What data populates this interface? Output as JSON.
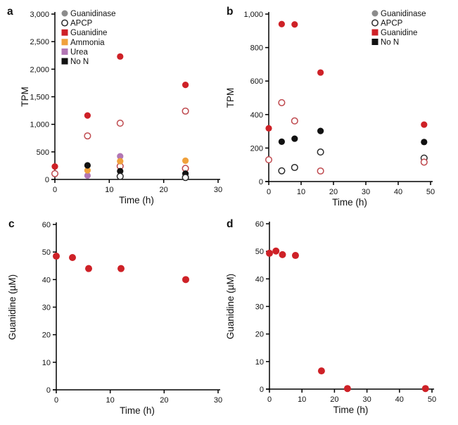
{
  "figure_background": "#ffffff",
  "palette": {
    "red": "#ce2127",
    "red_open_stroke": "#bf4a4f",
    "orange": "#f0a13c",
    "purple": "#b276b4",
    "gray": "#8c8c8c",
    "black": "#111111",
    "open_black_stroke": "#2b2b2b",
    "axis": "#000000"
  },
  "chart_data": [
    {
      "label": "a",
      "type": "scatter",
      "xlabel": "Time (h)",
      "ylabel": "TPM",
      "xlim": [
        0,
        30
      ],
      "ylim": [
        0,
        3000
      ],
      "grid": false,
      "xticks": {
        "values": [
          0,
          10,
          20,
          30
        ],
        "labels": [
          "0",
          "10",
          "20",
          "30"
        ]
      },
      "yticks": {
        "values": [
          0,
          500,
          1000,
          1500,
          2000,
          2500,
          3000
        ],
        "labels": [
          "0",
          "500",
          "1,000",
          "1,500",
          "2,000",
          "2,500",
          "3,000"
        ]
      },
      "legend_position": "top-left",
      "legend": [
        {
          "label": "Guanidinase",
          "marker": "circle",
          "color": "#8c8c8c"
        },
        {
          "label": "APCP",
          "marker": "circle-open",
          "color": "#2b2b2b"
        },
        {
          "label": "Guanidine",
          "marker": "square",
          "color": "#ce2127"
        },
        {
          "label": "Ammonia",
          "marker": "square",
          "color": "#f0a13c"
        },
        {
          "label": "Urea",
          "marker": "square",
          "color": "#b276b4"
        },
        {
          "label": "No N",
          "marker": "square",
          "color": "#111111"
        }
      ],
      "series": [
        {
          "name": "red-filled",
          "marker": "filled",
          "color": "#ce2127",
          "points": [
            [
              0,
              235
            ],
            [
              6,
              1160
            ],
            [
              12,
              2230
            ],
            [
              24,
              1715
            ]
          ]
        },
        {
          "name": "red-open",
          "marker": "open",
          "color": "#bf4a4f",
          "points": [
            [
              0,
              105
            ],
            [
              6,
              790
            ],
            [
              12,
              1020
            ],
            [
              12,
              240
            ],
            [
              24,
              1240
            ],
            [
              24,
              200
            ]
          ]
        },
        {
          "name": "purple-filled",
          "marker": "filled",
          "color": "#b276b4",
          "points": [
            [
              6,
              70
            ],
            [
              12,
              420
            ]
          ]
        },
        {
          "name": "orange-filled",
          "marker": "filled",
          "color": "#f0a13c",
          "points": [
            [
              6,
              165
            ],
            [
              12,
              330
            ],
            [
              24,
              340
            ]
          ]
        },
        {
          "name": "black-filled",
          "marker": "filled",
          "color": "#111111",
          "points": [
            [
              6,
              255
            ],
            [
              12,
              150
            ],
            [
              24,
              105
            ]
          ]
        },
        {
          "name": "black-open",
          "marker": "open",
          "color": "#2b2b2b",
          "points": [
            [
              12,
              55
            ],
            [
              24,
              35
            ]
          ]
        }
      ]
    },
    {
      "label": "b",
      "type": "scatter",
      "xlabel": "Time (h)",
      "ylabel": "TPM",
      "xlim": [
        0,
        50
      ],
      "ylim": [
        0,
        1000
      ],
      "grid": false,
      "xticks": {
        "values": [
          0,
          10,
          20,
          30,
          40,
          50
        ],
        "labels": [
          "0",
          "10",
          "20",
          "30",
          "40",
          "50"
        ]
      },
      "yticks": {
        "values": [
          0,
          200,
          400,
          600,
          800,
          1000
        ],
        "labels": [
          "0",
          "200",
          "400",
          "600",
          "800",
          "1,000"
        ]
      },
      "legend_position": "top-right",
      "legend": [
        {
          "label": "Guanidinase",
          "marker": "circle",
          "color": "#8c8c8c"
        },
        {
          "label": "APCP",
          "marker": "circle-open",
          "color": "#2b2b2b"
        },
        {
          "label": "Guanidine",
          "marker": "square",
          "color": "#ce2127"
        },
        {
          "label": "No N",
          "marker": "square",
          "color": "#111111"
        }
      ],
      "series": [
        {
          "name": "red-filled",
          "marker": "filled",
          "color": "#ce2127",
          "points": [
            [
              0,
              318
            ],
            [
              4,
              940
            ],
            [
              8,
              938
            ],
            [
              16,
              651
            ],
            [
              48,
              340
            ]
          ]
        },
        {
          "name": "black-filled",
          "marker": "filled",
          "color": "#111111",
          "points": [
            [
              4,
              238
            ],
            [
              8,
              256
            ],
            [
              16,
              302
            ],
            [
              48,
              236
            ]
          ]
        },
        {
          "name": "black-open",
          "marker": "open",
          "color": "#2b2b2b",
          "points": [
            [
              4,
              64
            ],
            [
              8,
              84
            ],
            [
              16,
              176
            ],
            [
              48,
              140
            ]
          ]
        },
        {
          "name": "red-open",
          "marker": "open",
          "color": "#bf4a4f",
          "points": [
            [
              0,
              130
            ],
            [
              4,
              471
            ],
            [
              8,
              362
            ],
            [
              16,
              63
            ],
            [
              48,
              116
            ]
          ]
        }
      ]
    },
    {
      "label": "c",
      "type": "scatter",
      "xlabel": "Time (h)",
      "ylabel": "Guanidine (µM)",
      "xlim": [
        0,
        30
      ],
      "ylim": [
        0,
        60
      ],
      "grid": false,
      "xticks": {
        "values": [
          0,
          10,
          20,
          30
        ],
        "labels": [
          "0",
          "10",
          "20",
          "30"
        ]
      },
      "yticks": {
        "values": [
          0,
          10,
          20,
          30,
          40,
          50,
          60
        ],
        "labels": [
          "0",
          "10",
          "20",
          "30",
          "40",
          "50",
          "60"
        ]
      },
      "legend": [],
      "series": [
        {
          "name": "red-filled",
          "marker": "filled",
          "color": "#ce2127",
          "points": [
            [
              0,
              48.5
            ],
            [
              3,
              48.0
            ],
            [
              6,
              44.0
            ],
            [
              12,
              44.0
            ],
            [
              24,
              40.0
            ]
          ]
        }
      ]
    },
    {
      "label": "d",
      "type": "scatter",
      "xlabel": "Time (h)",
      "ylabel": "Guanidine (µM)",
      "xlim": [
        0,
        50
      ],
      "ylim": [
        0,
        60
      ],
      "grid": false,
      "xticks": {
        "values": [
          0,
          10,
          20,
          30,
          40,
          50
        ],
        "labels": [
          "0",
          "10",
          "20",
          "30",
          "40",
          "50"
        ]
      },
      "yticks": {
        "values": [
          0,
          10,
          20,
          30,
          40,
          50,
          60
        ],
        "labels": [
          "0",
          "10",
          "20",
          "30",
          "40",
          "50",
          "60"
        ]
      },
      "legend": [],
      "series": [
        {
          "name": "red-filled",
          "marker": "filled",
          "color": "#ce2127",
          "points": [
            [
              0,
              49.3
            ],
            [
              2,
              50.1
            ],
            [
              4,
              48.8
            ],
            [
              8,
              48.5
            ],
            [
              16,
              6.6
            ],
            [
              24,
              0.2
            ],
            [
              48,
              0.2
            ]
          ]
        }
      ]
    }
  ]
}
